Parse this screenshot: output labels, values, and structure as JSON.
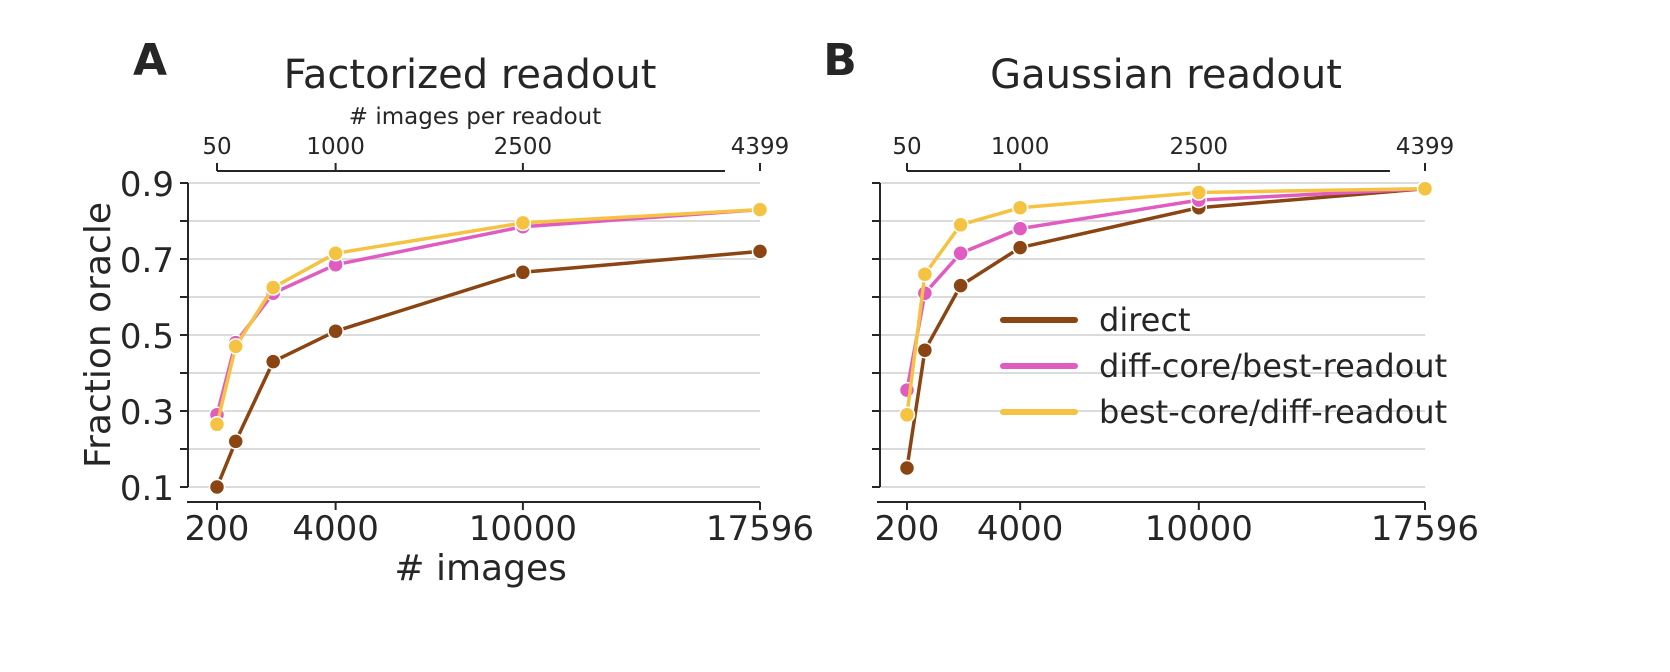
{
  "figure": {
    "panels": [
      "A",
      "B"
    ],
    "legend": {
      "placement": "inside-right of panel B",
      "entries": [
        {
          "label": "direct",
          "color": "#8B4513"
        },
        {
          "label": "diff-core/best-readout",
          "color": "#E05CC0"
        },
        {
          "label": "best-core/diff-readout",
          "color": "#F5C242"
        }
      ]
    }
  },
  "chart_data": [
    {
      "panel_label": "A",
      "type": "line",
      "title": "Factorized readout",
      "xlabel": "# images",
      "ylabel": "Fraction oracle",
      "top_axis_label": "# images per readout",
      "top_ticks": [
        "50",
        "1000",
        "2500",
        "4399"
      ],
      "x_ticks": [
        "200",
        "4000",
        "10000",
        "17596"
      ],
      "y_ticks": [
        "0.9",
        "0.7",
        "0.5",
        "0.3",
        "0.1"
      ],
      "xlim": [
        200,
        17596
      ],
      "ylim": [
        0.1,
        0.9
      ],
      "grid": true,
      "x": [
        200,
        800,
        2000,
        4000,
        10000,
        17596
      ],
      "series": [
        {
          "name": "direct",
          "color": "#8B4513",
          "values": [
            0.1,
            0.22,
            0.43,
            0.51,
            0.665,
            0.72
          ]
        },
        {
          "name": "diff-core/best-readout",
          "color": "#E05CC0",
          "values": [
            0.29,
            0.48,
            0.61,
            0.685,
            0.785,
            0.83
          ]
        },
        {
          "name": "best-core/diff-readout",
          "color": "#F5C242",
          "values": [
            0.265,
            0.47,
            0.625,
            0.715,
            0.795,
            0.83
          ]
        }
      ]
    },
    {
      "panel_label": "B",
      "type": "line",
      "title": "Gaussian readout",
      "xlabel": "",
      "ylabel": "",
      "top_axis_label": "",
      "top_ticks": [
        "50",
        "1000",
        "2500",
        "4399"
      ],
      "x_ticks": [
        "200",
        "4000",
        "10000",
        "17596"
      ],
      "y_ticks": [],
      "xlim": [
        200,
        17596
      ],
      "ylim": [
        0.1,
        0.9
      ],
      "grid": true,
      "x": [
        200,
        800,
        2000,
        4000,
        10000,
        17596
      ],
      "series": [
        {
          "name": "direct",
          "color": "#8B4513",
          "values": [
            0.15,
            0.46,
            0.63,
            0.73,
            0.835,
            0.885
          ]
        },
        {
          "name": "diff-core/best-readout",
          "color": "#E05CC0",
          "values": [
            0.355,
            0.61,
            0.715,
            0.78,
            0.855,
            0.885
          ]
        },
        {
          "name": "best-core/diff-readout",
          "color": "#F5C242",
          "values": [
            0.29,
            0.66,
            0.79,
            0.835,
            0.875,
            0.885
          ]
        }
      ]
    }
  ]
}
